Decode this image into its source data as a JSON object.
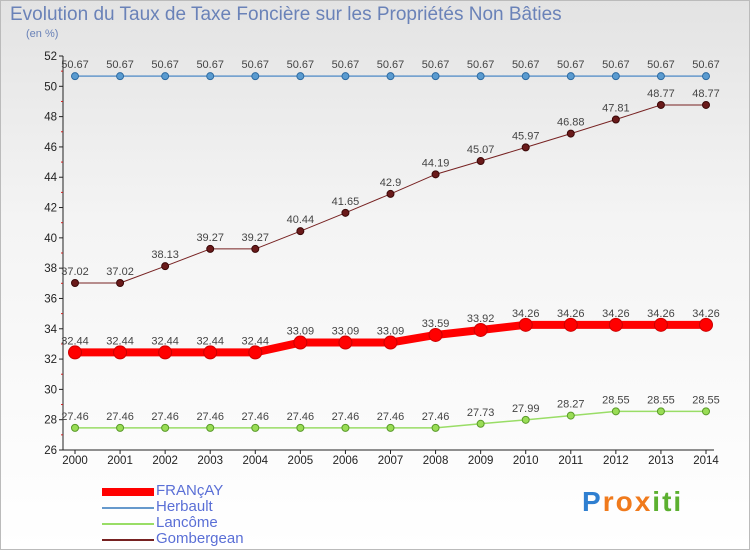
{
  "chart_data": {
    "type": "line",
    "title": "Evolution du Taux de Taxe Foncière sur les Propriétés Non Bâties",
    "unit_label": "(en %)",
    "xlabel": "",
    "ylabel": "(en %)",
    "ylim": [
      26,
      52
    ],
    "yticks": [
      26,
      28,
      30,
      32,
      34,
      36,
      38,
      40,
      42,
      44,
      46,
      48,
      50,
      52
    ],
    "grid": false,
    "x": [
      "2000",
      "2001",
      "2002",
      "2003",
      "2004",
      "2005",
      "2006",
      "2007",
      "2008",
      "2009",
      "2010",
      "2011",
      "2012",
      "2013",
      "2014"
    ],
    "series": [
      {
        "name": "FRANçAY",
        "color": "#ff0000",
        "values": [
          32.44,
          32.44,
          32.44,
          32.44,
          32.44,
          33.09,
          33.09,
          33.09,
          33.59,
          33.92,
          34.26,
          34.26,
          34.26,
          34.26,
          34.26
        ],
        "labels": [
          "32.44",
          "32.44",
          "32.44",
          "32.44",
          "32.44",
          "33.09",
          "33.09",
          "33.09",
          "33.59",
          "33.92",
          "34.26",
          "34.26",
          "34.26",
          "34.26",
          "34.26"
        ]
      },
      {
        "name": "Herbault",
        "color": "#6699cc",
        "values": [
          50.67,
          50.67,
          50.67,
          50.67,
          50.67,
          50.67,
          50.67,
          50.67,
          50.67,
          50.67,
          50.67,
          50.67,
          50.67,
          50.67,
          50.67
        ],
        "labels": [
          "50.67",
          "50.67",
          "50.67",
          "50.67",
          "50.67",
          "50.67",
          "50.67",
          "50.67",
          "50.67",
          "50.67",
          "50.67",
          "50.67",
          "50.67",
          "50.67",
          "50.67"
        ]
      },
      {
        "name": "Lancôme",
        "color": "#99dd66",
        "values": [
          27.46,
          27.46,
          27.46,
          27.46,
          27.46,
          27.46,
          27.46,
          27.46,
          27.46,
          27.73,
          27.99,
          28.27,
          28.55,
          28.55,
          28.55
        ],
        "labels": [
          "27.46",
          "27.46",
          "27.46",
          "27.46",
          "27.46",
          "27.46",
          "27.46",
          "27.46",
          "27.46",
          "27.73",
          "27.99",
          "28.27",
          "28.55",
          "28.55",
          "28.55"
        ]
      },
      {
        "name": "Gombergean",
        "color": "#772222",
        "values": [
          37.02,
          37.02,
          38.13,
          39.27,
          39.27,
          40.44,
          41.65,
          42.9,
          44.19,
          45.07,
          45.97,
          46.88,
          47.81,
          48.77,
          48.77
        ],
        "labels": [
          "37.02",
          "37.02",
          "38.13",
          "39.27",
          "39.27",
          "40.44",
          "41.65",
          "42.9",
          "44.19",
          "45.07",
          "45.97",
          "46.88",
          "47.81",
          "48.77",
          "48.77"
        ]
      }
    ]
  },
  "branding": {
    "logo_letters": [
      "P",
      "r",
      "o",
      "x",
      "i",
      "t",
      "i"
    ],
    "logo_colors": [
      "#2f7fd0",
      "#f07a1c",
      "#f07a1c",
      "#f07a1c",
      "#5cb030",
      "#5cb030",
      "#5cb030"
    ]
  }
}
